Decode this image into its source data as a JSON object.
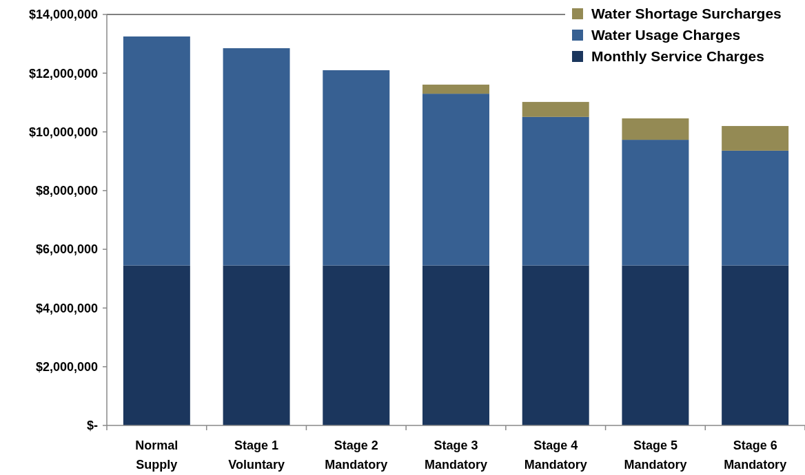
{
  "chart_data": {
    "type": "bar",
    "stacked": true,
    "categories": [
      "Normal\nSupply",
      "Stage 1\nVoluntary",
      "Stage 2\nMandatory",
      "Stage 3\nMandatory",
      "Stage 4\nMandatory",
      "Stage 5\nMandatory",
      "Stage 6\nMandatory"
    ],
    "series": [
      {
        "name": "Monthly Service Charges",
        "color": "#1b365d",
        "values": [
          5450000,
          5450000,
          5450000,
          5450000,
          5450000,
          5450000,
          5450000
        ]
      },
      {
        "name": "Water Usage Charges",
        "color": "#376092",
        "values": [
          7800000,
          7400000,
          6650000,
          5850000,
          5060000,
          4280000,
          3910000
        ]
      },
      {
        "name": "Water Shortage Surcharges",
        "color": "#948a54",
        "values": [
          0,
          0,
          0,
          310000,
          510000,
          730000,
          840000
        ]
      }
    ],
    "ylim": [
      0,
      14000000
    ],
    "yticks": [
      {
        "value": 0,
        "label": "$-"
      },
      {
        "value": 2000000,
        "label": "$2,000,000"
      },
      {
        "value": 4000000,
        "label": "$4,000,000"
      },
      {
        "value": 6000000,
        "label": "$6,000,000"
      },
      {
        "value": 8000000,
        "label": "$8,000,000"
      },
      {
        "value": 10000000,
        "label": "$10,000,000"
      },
      {
        "value": 12000000,
        "label": "$12,000,000"
      },
      {
        "value": 14000000,
        "label": "$14,000,000"
      }
    ],
    "legend": "top right"
  }
}
